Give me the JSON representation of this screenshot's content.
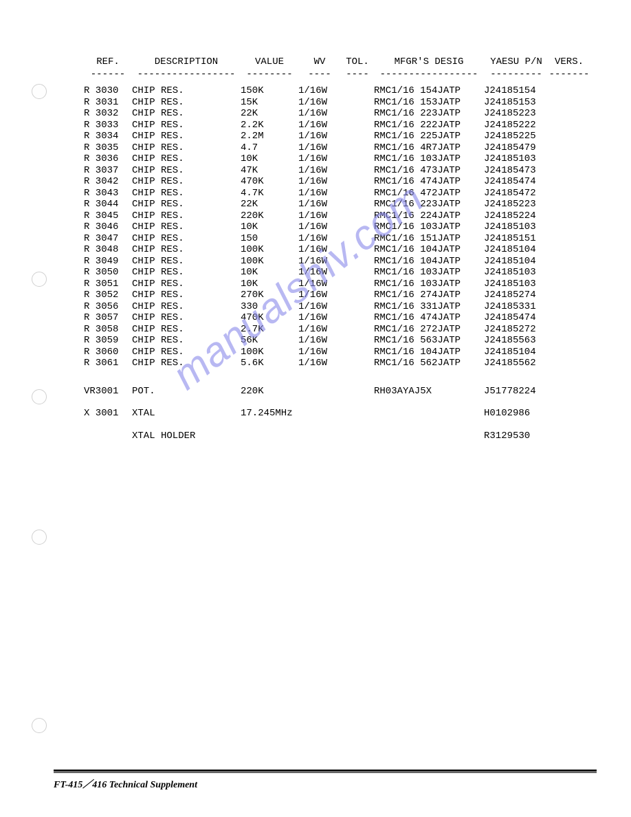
{
  "headers": {
    "ref": "REF.",
    "desc": "DESCRIPTION",
    "value": "VALUE",
    "wv": "WV",
    "tol": "TOL.",
    "mfgr": "MFGR'S DESIG",
    "pn": "YAESU P/N",
    "vers": "VERS."
  },
  "dividers": {
    "ref": "------",
    "desc": "-----------------",
    "value": "--------",
    "wv": "----",
    "tol": "----",
    "mfgr": "-----------------",
    "pn": "---------",
    "vers": "-------"
  },
  "rows": [
    {
      "ref": "R 3030",
      "desc": "CHIP RES.",
      "value": "150K",
      "wv": "1/16W",
      "tol": "",
      "mfgr": "RMC1/16 154JATP",
      "pn": "J24185154",
      "vers": ""
    },
    {
      "ref": "R 3031",
      "desc": "CHIP RES.",
      "value": "15K",
      "wv": "1/16W",
      "tol": "",
      "mfgr": "RMC1/16 153JATP",
      "pn": "J24185153",
      "vers": ""
    },
    {
      "ref": "R 3032",
      "desc": "CHIP RES.",
      "value": "22K",
      "wv": "1/16W",
      "tol": "",
      "mfgr": "RMC1/16 223JATP",
      "pn": "J24185223",
      "vers": ""
    },
    {
      "ref": "R 3033",
      "desc": "CHIP RES.",
      "value": "2.2K",
      "wv": "1/16W",
      "tol": "",
      "mfgr": "RMC1/16 222JATP",
      "pn": "J24185222",
      "vers": ""
    },
    {
      "ref": "R 3034",
      "desc": "CHIP RES.",
      "value": "2.2M",
      "wv": "1/16W",
      "tol": "",
      "mfgr": "RMC1/16 225JATP",
      "pn": "J24185225",
      "vers": ""
    },
    {
      "ref": "R 3035",
      "desc": "CHIP RES.",
      "value": "4.7",
      "wv": "1/16W",
      "tol": "",
      "mfgr": "RMC1/16 4R7JATP",
      "pn": "J24185479",
      "vers": ""
    },
    {
      "ref": "R 3036",
      "desc": "CHIP RES.",
      "value": "10K",
      "wv": "1/16W",
      "tol": "",
      "mfgr": "RMC1/16 103JATP",
      "pn": "J24185103",
      "vers": ""
    },
    {
      "ref": "R 3037",
      "desc": "CHIP RES.",
      "value": "47K",
      "wv": "1/16W",
      "tol": "",
      "mfgr": "RMC1/16 473JATP",
      "pn": "J24185473",
      "vers": ""
    },
    {
      "ref": "R 3042",
      "desc": "CHIP RES.",
      "value": "470K",
      "wv": "1/16W",
      "tol": "",
      "mfgr": "RMC1/16 474JATP",
      "pn": "J24185474",
      "vers": ""
    },
    {
      "ref": "R 3043",
      "desc": "CHIP RES.",
      "value": "4.7K",
      "wv": "1/16W",
      "tol": "",
      "mfgr": "RMC1/16 472JATP",
      "pn": "J24185472",
      "vers": ""
    },
    {
      "ref": "R 3044",
      "desc": "CHIP RES.",
      "value": "22K",
      "wv": "1/16W",
      "tol": "",
      "mfgr": "RMC1/16 223JATP",
      "pn": "J24185223",
      "vers": ""
    },
    {
      "ref": "R 3045",
      "desc": "CHIP RES.",
      "value": "220K",
      "wv": "1/16W",
      "tol": "",
      "mfgr": "RMC1/16 224JATP",
      "pn": "J24185224",
      "vers": ""
    },
    {
      "ref": "R 3046",
      "desc": "CHIP RES.",
      "value": "10K",
      "wv": "1/16W",
      "tol": "",
      "mfgr": "RMC1/16 103JATP",
      "pn": "J24185103",
      "vers": ""
    },
    {
      "ref": "R 3047",
      "desc": "CHIP RES.",
      "value": "150",
      "wv": "1/16W",
      "tol": "",
      "mfgr": "RMC1/16 151JATP",
      "pn": "J24185151",
      "vers": ""
    },
    {
      "ref": "R 3048",
      "desc": "CHIP RES.",
      "value": "100K",
      "wv": "1/16W",
      "tol": "",
      "mfgr": "RMC1/16 104JATP",
      "pn": "J24185104",
      "vers": ""
    },
    {
      "ref": "R 3049",
      "desc": "CHIP RES.",
      "value": "100K",
      "wv": "1/16W",
      "tol": "",
      "mfgr": "RMC1/16 104JATP",
      "pn": "J24185104",
      "vers": ""
    },
    {
      "ref": "R 3050",
      "desc": "CHIP RES.",
      "value": "10K",
      "wv": "1/16W",
      "tol": "",
      "mfgr": "RMC1/16 103JATP",
      "pn": "J24185103",
      "vers": ""
    },
    {
      "ref": "R 3051",
      "desc": "CHIP RES.",
      "value": "10K",
      "wv": "1/16W",
      "tol": "",
      "mfgr": "RMC1/16 103JATP",
      "pn": "J24185103",
      "vers": ""
    },
    {
      "ref": "R 3052",
      "desc": "CHIP RES.",
      "value": "270K",
      "wv": "1/16W",
      "tol": "",
      "mfgr": "RMC1/16 274JATP",
      "pn": "J24185274",
      "vers": ""
    },
    {
      "ref": "R 3056",
      "desc": "CHIP RES.",
      "value": "330",
      "wv": "1/16W",
      "tol": "",
      "mfgr": "RMC1/16 331JATP",
      "pn": "J24185331",
      "vers": ""
    },
    {
      "ref": "R 3057",
      "desc": "CHIP RES.",
      "value": "470K",
      "wv": "1/16W",
      "tol": "",
      "mfgr": "RMC1/16 474JATP",
      "pn": "J24185474",
      "vers": ""
    },
    {
      "ref": "R 3058",
      "desc": "CHIP RES.",
      "value": "2.7K",
      "wv": "1/16W",
      "tol": "",
      "mfgr": "RMC1/16 272JATP",
      "pn": "J24185272",
      "vers": ""
    },
    {
      "ref": "R 3059",
      "desc": "CHIP RES.",
      "value": "56K",
      "wv": "1/16W",
      "tol": "",
      "mfgr": "RMC1/16 563JATP",
      "pn": "J24185563",
      "vers": ""
    },
    {
      "ref": "R 3060",
      "desc": "CHIP RES.",
      "value": "100K",
      "wv": "1/16W",
      "tol": "",
      "mfgr": "RMC1/16 104JATP",
      "pn": "J24185104",
      "vers": ""
    },
    {
      "ref": "R 3061",
      "desc": "CHIP RES.",
      "value": "5.6K",
      "wv": "1/16W",
      "tol": "",
      "mfgr": "RMC1/16 562JATP",
      "pn": "J24185562",
      "vers": ""
    }
  ],
  "extra_rows": [
    {
      "ref": "VR3001",
      "desc": "POT.",
      "value": "220K",
      "wv": "",
      "tol": "",
      "mfgr": "RH03AYAJ5X",
      "pn": "J51778224",
      "vers": ""
    },
    {
      "ref": "X 3001",
      "desc": "XTAL",
      "value": "17.245MHz",
      "wv": "",
      "tol": "",
      "mfgr": "",
      "pn": "H0102986",
      "vers": ""
    },
    {
      "ref": "",
      "desc": "XTAL HOLDER",
      "value": "",
      "wv": "",
      "tol": "",
      "mfgr": "",
      "pn": "R3129530",
      "vers": ""
    }
  ],
  "watermark_text": "manualshiv.com",
  "footer_text": "FT-415／416  Technical Supplement",
  "binder_hole_positions": [
    122,
    395,
    566,
    770,
    1044
  ]
}
